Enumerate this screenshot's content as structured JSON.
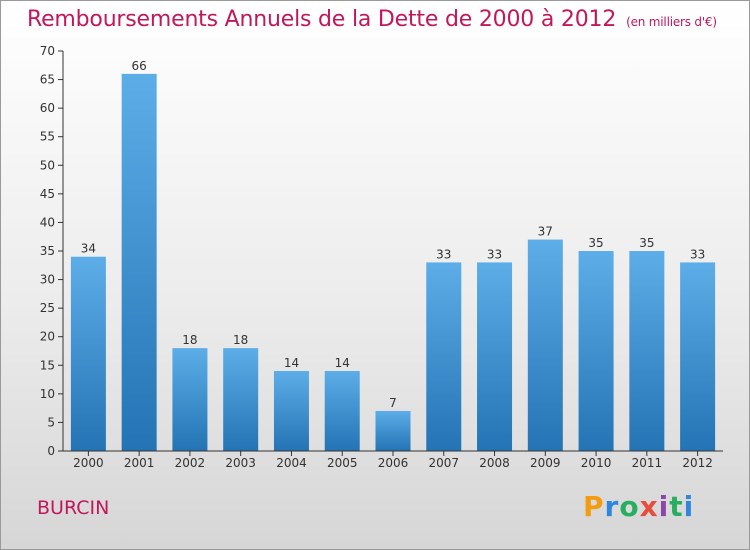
{
  "header": {
    "title": "Remboursements Annuels de la Dette de 2000 à 2012",
    "subtitle": "(en milliers d'€)"
  },
  "commune": "BURCIN",
  "logo": {
    "letters": [
      "P",
      "r",
      "o",
      "x",
      "i",
      "t",
      "i"
    ]
  },
  "colors": {
    "title": "#c2185b",
    "bar_top": "#5dade8",
    "bar_bottom": "#2474b5",
    "axis": "#333333"
  },
  "chart_data": {
    "type": "bar",
    "categories": [
      "2000",
      "2001",
      "2002",
      "2003",
      "2004",
      "2005",
      "2006",
      "2007",
      "2008",
      "2009",
      "2010",
      "2011",
      "2012"
    ],
    "values": [
      34,
      66,
      18,
      18,
      14,
      14,
      7,
      33,
      33,
      37,
      35,
      35,
      33
    ],
    "title": "Remboursements Annuels de la Dette de 2000 à 2012",
    "subtitle": "(en milliers d'€)",
    "xlabel": "",
    "ylabel": "",
    "ylim": [
      0,
      70
    ],
    "yticks": [
      0,
      5,
      10,
      15,
      20,
      25,
      30,
      35,
      40,
      45,
      50,
      55,
      60,
      65,
      70
    ],
    "grid": false,
    "legend": "none",
    "data_labels": true
  }
}
